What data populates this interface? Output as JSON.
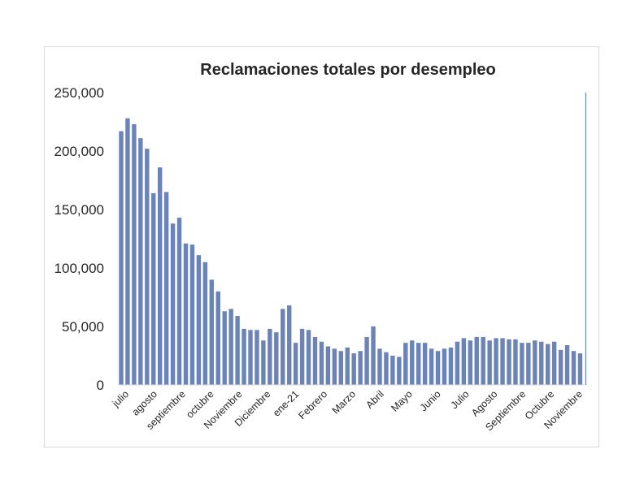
{
  "chart_data": {
    "type": "bar",
    "title": "Reclamaciones totales por desempleo",
    "xlabel": "",
    "ylabel": "",
    "ylim": [
      0,
      250000
    ],
    "yticks": [
      "0",
      "50,000",
      "100,000",
      "150,000",
      "200,000",
      "250,000"
    ],
    "grid": false,
    "legend": "none",
    "bar_color": "#6a83bb",
    "x_tick_labels": [
      "julio",
      "agosto",
      "septiembre",
      "octubre",
      "Noviembre",
      "Diciembre",
      "ene-21",
      "Febrero",
      "Marzo",
      "Abril",
      "Mayo",
      "Junio",
      "Julio",
      "Agosto",
      "Septiembre",
      "Octubre",
      "Noviembre"
    ],
    "values": [
      217000,
      228000,
      223000,
      211000,
      202000,
      164000,
      186000,
      165000,
      138000,
      143000,
      121000,
      120000,
      111000,
      105000,
      90000,
      80000,
      63000,
      65000,
      59000,
      48000,
      47000,
      47000,
      38000,
      48000,
      45000,
      65000,
      68000,
      36000,
      48000,
      47000,
      41000,
      37000,
      33000,
      31000,
      29000,
      32000,
      27000,
      29000,
      41000,
      50000,
      31000,
      28000,
      25000,
      24000,
      36000,
      38000,
      36000,
      36000,
      31000,
      29000,
      31000,
      32000,
      37000,
      40000,
      38000,
      41000,
      41000,
      38000,
      40000,
      40000,
      39000,
      39000,
      36000,
      36000,
      38000,
      37000,
      35000,
      37000,
      30000,
      34000,
      29000,
      27000
    ],
    "trailing_marker_value": 250000
  }
}
